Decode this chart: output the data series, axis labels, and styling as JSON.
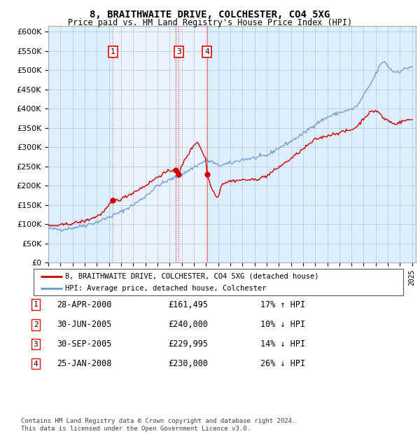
{
  "title": "8, BRAITHWAITE DRIVE, COLCHESTER, CO4 5XG",
  "subtitle": "Price paid vs. HM Land Registry's House Price Index (HPI)",
  "background_color": "#ffffff",
  "plot_bg_color": "#ddeeff",
  "grid_color": "#bbccdd",
  "hpi_color": "#6699cc",
  "price_color": "#cc0000",
  "legend_label_price": "8, BRAITHWAITE DRIVE, COLCHESTER, CO4 5XG (detached house)",
  "legend_label_hpi": "HPI: Average price, detached house, Colchester",
  "yticks": [
    0,
    50000,
    100000,
    150000,
    200000,
    250000,
    300000,
    350000,
    400000,
    450000,
    500000,
    550000,
    600000
  ],
  "transactions": [
    {
      "num": 1,
      "date": "28-APR-2000",
      "price": 161495,
      "pct": "17%",
      "dir": "↑"
    },
    {
      "num": 2,
      "date": "30-JUN-2005",
      "price": 240000,
      "pct": "10%",
      "dir": "↓"
    },
    {
      "num": 3,
      "date": "30-SEP-2005",
      "price": 229995,
      "pct": "14%",
      "dir": "↓"
    },
    {
      "num": 4,
      "date": "25-JAN-2008",
      "price": 230000,
      "pct": "26%",
      "dir": "↓"
    }
  ],
  "footnote": "Contains HM Land Registry data © Crown copyright and database right 2024.\nThis data is licensed under the Open Government Licence v3.0."
}
